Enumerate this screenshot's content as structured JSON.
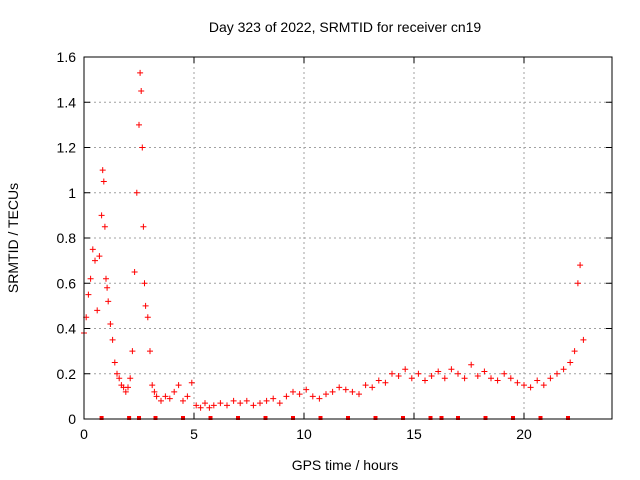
{
  "chart_data": {
    "type": "scatter",
    "title": "Day 323 of 2022, SRMTID for receiver cn19",
    "xlabel": "GPS time / hours",
    "ylabel": "SRMTID / TECUs",
    "xlim": [
      0,
      24
    ],
    "ylim": [
      0,
      1.6
    ],
    "xticks": [
      0,
      5,
      10,
      15,
      20
    ],
    "yticks": [
      0,
      0.2,
      0.4,
      0.6,
      0.8,
      1.0,
      1.2,
      1.4,
      1.6
    ],
    "xtick_labels": [
      "0",
      "5",
      "10",
      "15",
      "20"
    ],
    "ytick_labels": [
      "0",
      "0.2",
      "0.4",
      "0.6",
      "0.8",
      "1",
      "1.2",
      "1.4",
      "1.6"
    ],
    "grid": true,
    "marker": "plus",
    "color": "#ff0000",
    "series": [
      {
        "name": "SRMTID",
        "x": [
          0.0,
          0.1,
          0.2,
          0.3,
          0.4,
          0.5,
          0.6,
          0.7,
          0.8,
          0.85,
          0.9,
          0.95,
          1.0,
          1.05,
          1.1,
          1.2,
          1.3,
          1.4,
          1.5,
          1.6,
          1.7,
          1.8,
          1.9,
          2.0,
          2.1,
          2.2,
          2.3,
          2.4,
          2.5,
          2.55,
          2.6,
          2.65,
          2.7,
          2.75,
          2.8,
          2.9,
          3.0,
          3.1,
          3.2,
          3.3,
          3.5,
          3.7,
          3.9,
          4.1,
          4.3,
          4.5,
          4.7,
          4.9,
          5.1,
          5.3,
          5.5,
          5.7,
          5.9,
          6.2,
          6.5,
          6.8,
          7.1,
          7.4,
          7.7,
          8.0,
          8.3,
          8.6,
          8.9,
          9.2,
          9.5,
          9.8,
          10.1,
          10.4,
          10.7,
          11.0,
          11.3,
          11.6,
          11.9,
          12.2,
          12.5,
          12.8,
          13.1,
          13.4,
          13.7,
          14.0,
          14.3,
          14.6,
          14.9,
          15.2,
          15.5,
          15.8,
          16.1,
          16.4,
          16.7,
          17.0,
          17.3,
          17.6,
          17.9,
          18.2,
          18.5,
          18.8,
          19.1,
          19.4,
          19.7,
          20.0,
          20.3,
          20.6,
          20.9,
          21.2,
          21.5,
          21.8,
          22.1,
          22.3,
          22.45,
          22.55,
          22.7
        ],
        "y": [
          0.38,
          0.45,
          0.55,
          0.62,
          0.75,
          0.7,
          0.48,
          0.72,
          0.9,
          1.1,
          1.05,
          0.85,
          0.62,
          0.58,
          0.52,
          0.42,
          0.35,
          0.25,
          0.2,
          0.18,
          0.15,
          0.14,
          0.12,
          0.14,
          0.18,
          0.3,
          0.65,
          1.0,
          1.3,
          1.53,
          1.45,
          1.2,
          0.85,
          0.6,
          0.5,
          0.45,
          0.3,
          0.15,
          0.12,
          0.1,
          0.08,
          0.1,
          0.09,
          0.12,
          0.15,
          0.08,
          0.1,
          0.16,
          0.06,
          0.05,
          0.07,
          0.05,
          0.06,
          0.07,
          0.06,
          0.08,
          0.07,
          0.08,
          0.06,
          0.07,
          0.08,
          0.09,
          0.07,
          0.1,
          0.12,
          0.11,
          0.13,
          0.1,
          0.09,
          0.11,
          0.12,
          0.14,
          0.13,
          0.12,
          0.11,
          0.15,
          0.14,
          0.17,
          0.16,
          0.2,
          0.19,
          0.22,
          0.18,
          0.2,
          0.17,
          0.19,
          0.21,
          0.18,
          0.22,
          0.2,
          0.18,
          0.24,
          0.19,
          0.21,
          0.18,
          0.17,
          0.2,
          0.18,
          0.16,
          0.15,
          0.14,
          0.17,
          0.15,
          0.18,
          0.2,
          0.22,
          0.25,
          0.3,
          0.6,
          0.68,
          0.35
        ]
      }
    ],
    "gap_markers_x": [
      0.8,
      2.05,
      2.5,
      3.25,
      4.5,
      5.75,
      7.0,
      8.25,
      9.5,
      10.75,
      12.0,
      13.25,
      14.5,
      15.75,
      16.25,
      17.0,
      18.25,
      19.5,
      20.75,
      22.0
    ]
  }
}
